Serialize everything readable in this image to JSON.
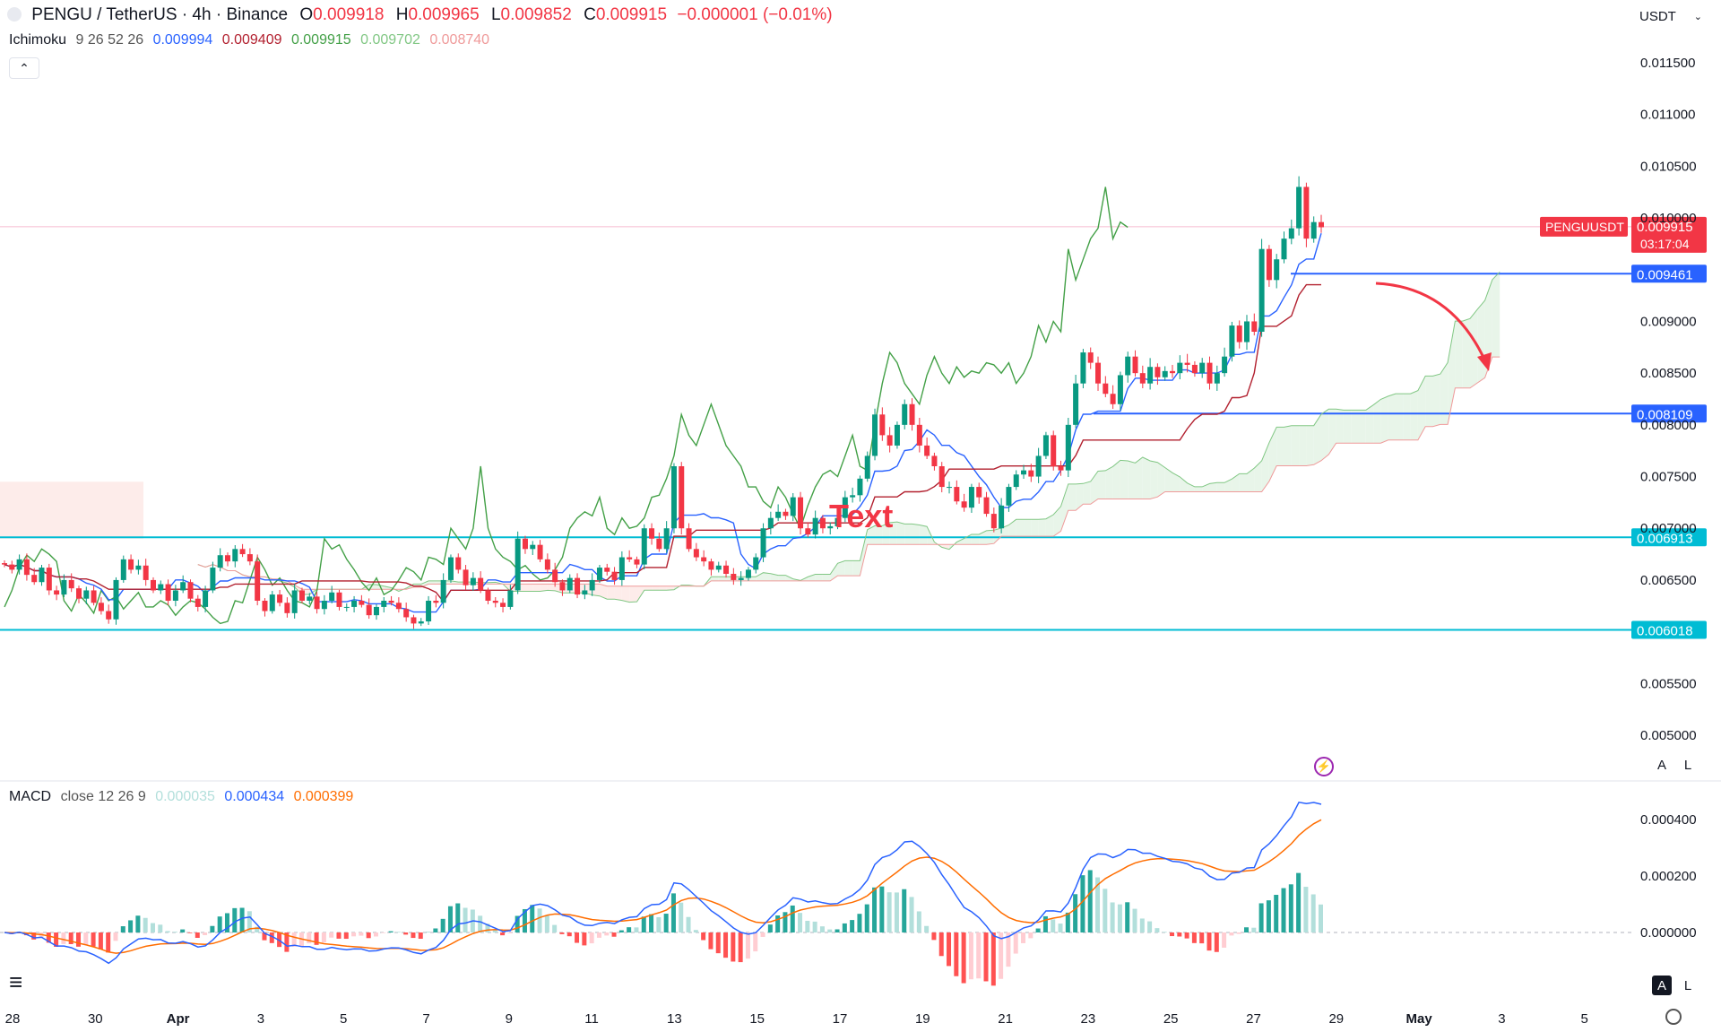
{
  "header": {
    "symbol": "PENGU / TetherUS · 4h · Binance",
    "open_label": "O",
    "open": "0.009918",
    "high_label": "H",
    "high": "0.009965",
    "low_label": "L",
    "low": "0.009852",
    "close_label": "C",
    "close": "0.009915",
    "change": "−0.000001 (−0.01%)"
  },
  "ichimoku_legend": {
    "name": "Ichimoku",
    "params": "9 26 52 26",
    "v1": "0.009994",
    "v2": "0.009409",
    "v3": "0.009915",
    "v4": "0.009702",
    "v5": "0.008740"
  },
  "macd_legend": {
    "name": "MACD",
    "params": "close 12 26 9",
    "hist": "0.000035",
    "macd": "0.000434",
    "signal": "0.000399"
  },
  "currency_selector": "USDT",
  "scale_buttons": {
    "auto": "A",
    "log": "L"
  },
  "colors": {
    "up": "#089981",
    "down": "#f23645",
    "tenkan": "#2962ff",
    "kijun": "#b2202f",
    "chikou": "#43a047",
    "cloud_bull": "#a5d6a7",
    "cloud_bear": "#ef9a9a",
    "level_blue": "#2962ff",
    "level_cyan": "#00bcd4",
    "macd": "#2962ff",
    "signal": "#ff6d00"
  },
  "icons": [
    "collapse-chevron-icon",
    "lightning-icon",
    "settings-icon",
    "tradingview-logo-icon"
  ],
  "chart_data": {
    "type": "candlestick",
    "title": "PENGU / TetherUS · 4h · Binance",
    "price_axis_ticks": [
      "0.011500",
      "0.011000",
      "0.010500",
      "0.010000",
      "0.008500",
      "0.009000",
      "0.008000",
      "0.007500",
      "0.007000",
      "0.006500",
      "0.005500",
      "0.005000"
    ],
    "price_ticks_drawn": [
      "0.011500",
      "0.011000",
      "0.010500",
      "0.010000",
      "0.009000",
      "0.008500",
      "0.008000",
      "0.007500",
      "0.007000",
      "0.006500",
      "0.005500",
      "0.005000"
    ],
    "macd_axis_ticks": [
      "0.000400",
      "0.000200",
      "0.000000"
    ],
    "x_tick_labels": [
      "28",
      "30",
      "Apr",
      "3",
      "5",
      "7",
      "9",
      "11",
      "13",
      "15",
      "17",
      "19",
      "21",
      "23",
      "25",
      "27",
      "29",
      "May",
      "3",
      "5"
    ],
    "ylim": [
      0.0047,
      0.0118
    ],
    "horizontal_levels": [
      {
        "label": "0.009461",
        "value": 0.009461,
        "color": "blue",
        "span": "partial"
      },
      {
        "label": "0.008109",
        "value": 0.008109,
        "color": "blue",
        "span": "partial"
      },
      {
        "label": "0.006913",
        "value": 0.006913,
        "color": "cyan",
        "span": "full"
      },
      {
        "label": "0.006018",
        "value": 0.006018,
        "color": "cyan",
        "span": "full"
      }
    ],
    "current_price": {
      "symbol": "PENGUUSDT",
      "price": "0.009915",
      "countdown": "03:17:04",
      "value": 0.009915
    },
    "annotation_text": "Text",
    "annotation_arrow": "curved-red-down-arrow",
    "candles_close": [
      0.00665,
      0.0066,
      0.0067,
      0.00655,
      0.00648,
      0.00662,
      0.0064,
      0.00636,
      0.0065,
      0.00642,
      0.00632,
      0.0064,
      0.00628,
      0.0062,
      0.00612,
      0.0065,
      0.0067,
      0.0066,
      0.00664,
      0.0065,
      0.0064,
      0.00646,
      0.0063,
      0.0064,
      0.00648,
      0.00632,
      0.00624,
      0.0064,
      0.00662,
      0.00674,
      0.00668,
      0.0068,
      0.00675,
      0.00668,
      0.0063,
      0.0062,
      0.00636,
      0.00628,
      0.00618,
      0.0064,
      0.0063,
      0.00634,
      0.00622,
      0.0063,
      0.00638,
      0.00624,
      0.00624,
      0.0063,
      0.00626,
      0.00616,
      0.00624,
      0.0063,
      0.00628,
      0.00622,
      0.00614,
      0.00608,
      0.0061,
      0.0063,
      0.00628,
      0.0065,
      0.00672,
      0.0066,
      0.00645,
      0.00652,
      0.0064,
      0.0063,
      0.00628,
      0.00624,
      0.0064,
      0.0069,
      0.0068,
      0.00684,
      0.0067,
      0.0066,
      0.00648,
      0.0064,
      0.00652,
      0.00636,
      0.0064,
      0.0065,
      0.00662,
      0.00658,
      0.0065,
      0.00672,
      0.0067,
      0.00665,
      0.007,
      0.0069,
      0.0068,
      0.007,
      0.0076,
      0.007,
      0.0068,
      0.00672,
      0.00668,
      0.0066,
      0.00664,
      0.00656,
      0.0065,
      0.00652,
      0.0066,
      0.00672,
      0.007,
      0.0071,
      0.00716,
      0.00712,
      0.0073,
      0.007,
      0.00694,
      0.0071,
      0.007,
      0.00702,
      0.0071,
      0.0073,
      0.00732,
      0.00748,
      0.0077,
      0.0081,
      0.0079,
      0.0078,
      0.008,
      0.0082,
      0.008,
      0.0078,
      0.0077,
      0.0076,
      0.0074,
      0.0074,
      0.00726,
      0.0072,
      0.0074,
      0.0073,
      0.00714,
      0.007,
      0.00722,
      0.0074,
      0.00752,
      0.00756,
      0.0075,
      0.0077,
      0.0079,
      0.0076,
      0.00756,
      0.008,
      0.0084,
      0.0087,
      0.0086,
      0.0084,
      0.0083,
      0.0082,
      0.00848,
      0.00866,
      0.0085,
      0.0084,
      0.00856,
      0.00846,
      0.00852,
      0.0085,
      0.0086,
      0.00858,
      0.0085,
      0.0086,
      0.0084,
      0.0085,
      0.00866,
      0.00896,
      0.0088,
      0.009,
      0.0089,
      0.0097,
      0.0094,
      0.0096,
      0.0098,
      0.0099,
      0.0103,
      0.0098,
      0.00996,
      0.00991
    ],
    "series": [
      {
        "name": "MACD",
        "values": "line"
      },
      {
        "name": "Signal",
        "values": "line"
      }
    ]
  }
}
